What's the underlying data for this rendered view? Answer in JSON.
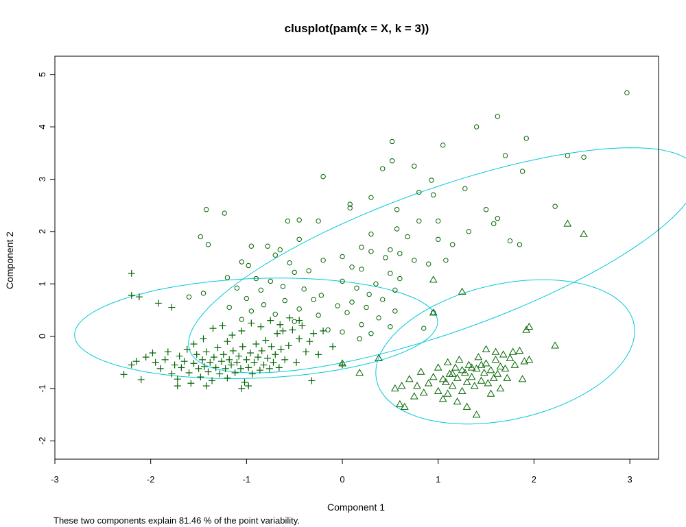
{
  "chart_data": {
    "type": "scatter",
    "title": "clusplot(pam(x = X, k = 3))",
    "xlabel": "Component 1",
    "ylabel": "Component 2",
    "footnote": "These two components explain 81.46 % of the point variability.",
    "xlim": [
      -3,
      3.3
    ],
    "ylim": [
      -2.35,
      5.35
    ],
    "xticks": [
      "-3",
      "-2",
      "-1",
      "0",
      "1",
      "2",
      "3"
    ],
    "yticks": [
      "-2",
      "-1",
      "0",
      "1",
      "2",
      "3",
      "4",
      "5"
    ],
    "grid": false,
    "colors": {
      "points": "#006400",
      "ellipse": "#00c8d8",
      "axes": "#000000"
    },
    "ellipses": [
      {
        "cluster": "circles",
        "center": [
          1.05,
          1.45
        ],
        "radii": [
          3.2,
          1.2
        ],
        "rotation_deg": 37
      },
      {
        "cluster": "plus",
        "center": [
          -0.9,
          0.15
        ],
        "radii": [
          1.9,
          0.95
        ],
        "rotation_deg": 5
      },
      {
        "cluster": "triangles",
        "center": [
          1.7,
          -0.3
        ],
        "radii": [
          1.55,
          1.15
        ],
        "rotation_deg": 47
      }
    ],
    "series": [
      {
        "marker": "plus",
        "points": [
          [
            -2.2,
            1.2
          ],
          [
            -2.2,
            0.78
          ],
          [
            -2.12,
            0.75
          ],
          [
            -1.92,
            0.63
          ],
          [
            -1.78,
            0.55
          ],
          [
            -2.28,
            -0.73
          ],
          [
            -2.1,
            -0.83
          ],
          [
            -2.2,
            -0.55
          ],
          [
            -2.15,
            -0.48
          ],
          [
            -2.05,
            -0.4
          ],
          [
            -1.98,
            -0.32
          ],
          [
            -1.95,
            -0.5
          ],
          [
            -1.9,
            -0.62
          ],
          [
            -1.85,
            -0.45
          ],
          [
            -1.82,
            -0.3
          ],
          [
            -1.78,
            -0.72
          ],
          [
            -1.75,
            -0.55
          ],
          [
            -1.72,
            -0.82
          ],
          [
            -1.7,
            -0.38
          ],
          [
            -1.68,
            -0.6
          ],
          [
            -1.65,
            -0.48
          ],
          [
            -1.62,
            -0.25
          ],
          [
            -1.6,
            -0.7
          ],
          [
            -1.58,
            -0.9
          ],
          [
            -1.55,
            -0.52
          ],
          [
            -1.52,
            -0.35
          ],
          [
            -1.5,
            -0.62
          ],
          [
            -1.48,
            -0.78
          ],
          [
            -1.46,
            -0.45
          ],
          [
            -1.44,
            -0.58
          ],
          [
            -1.42,
            -0.3
          ],
          [
            -1.4,
            -0.68
          ],
          [
            -1.38,
            -0.5
          ],
          [
            -1.36,
            -0.85
          ],
          [
            -1.34,
            -0.4
          ],
          [
            -1.32,
            -0.6
          ],
          [
            -1.3,
            -0.22
          ],
          [
            -1.28,
            -0.72
          ],
          [
            -1.26,
            -0.48
          ],
          [
            -1.24,
            -0.35
          ],
          [
            -1.22,
            -0.62
          ],
          [
            -1.2,
            -0.8
          ],
          [
            -1.18,
            -0.45
          ],
          [
            -1.16,
            -0.55
          ],
          [
            -1.14,
            -0.28
          ],
          [
            -1.12,
            -0.7
          ],
          [
            -1.1,
            -0.5
          ],
          [
            -1.08,
            -0.38
          ],
          [
            -1.06,
            -0.62
          ],
          [
            -1.04,
            -0.2
          ],
          [
            -1.02,
            -0.88
          ],
          [
            -1.0,
            -0.45
          ],
          [
            -0.98,
            -0.6
          ],
          [
            -0.96,
            -0.32
          ],
          [
            -0.94,
            -0.72
          ],
          [
            -0.92,
            -0.5
          ],
          [
            -0.9,
            -0.15
          ],
          [
            -0.88,
            -0.4
          ],
          [
            -0.86,
            -0.65
          ],
          [
            -0.84,
            -0.28
          ],
          [
            -0.82,
            -0.55
          ],
          [
            -0.8,
            -0.08
          ],
          [
            -0.78,
            -0.42
          ],
          [
            -0.76,
            -0.62
          ],
          [
            -0.74,
            -0.2
          ],
          [
            -0.72,
            -0.5
          ],
          [
            -0.7,
            -0.35
          ],
          [
            -0.68,
            0.05
          ],
          [
            -0.66,
            -0.6
          ],
          [
            -0.64,
            -0.25
          ],
          [
            -0.62,
            0.1
          ],
          [
            -0.6,
            -0.45
          ],
          [
            -0.56,
            -0.18
          ],
          [
            -0.52,
            0.12
          ],
          [
            -0.48,
            -0.5
          ],
          [
            -0.45,
            -0.05
          ],
          [
            -0.42,
            0.2
          ],
          [
            -0.38,
            -0.3
          ],
          [
            -0.34,
            -0.1
          ],
          [
            -0.3,
            0.05
          ],
          [
            -0.25,
            -0.35
          ],
          [
            -0.2,
            0.1
          ],
          [
            -0.1,
            -0.2
          ],
          [
            -0.32,
            -0.85
          ],
          [
            0.0,
            -0.55
          ],
          [
            -1.35,
            0.15
          ],
          [
            -1.45,
            -0.05
          ],
          [
            -1.25,
            0.2
          ],
          [
            -1.15,
            0.02
          ],
          [
            -1.05,
            0.1
          ],
          [
            -0.95,
            0.25
          ],
          [
            -0.85,
            0.18
          ],
          [
            -0.75,
            0.3
          ],
          [
            -0.65,
            0.22
          ],
          [
            -0.55,
            0.35
          ],
          [
            -0.45,
            0.3
          ],
          [
            -1.55,
            -0.15
          ],
          [
            -1.2,
            -0.1
          ],
          [
            -0.98,
            -0.95
          ],
          [
            -1.05,
            -1.0
          ],
          [
            -1.42,
            -0.95
          ],
          [
            -1.72,
            -0.95
          ]
        ]
      },
      {
        "marker": "circle",
        "points": [
          [
            2.97,
            4.65
          ],
          [
            1.4,
            4.0
          ],
          [
            1.62,
            4.2
          ],
          [
            1.92,
            3.78
          ],
          [
            0.52,
            3.72
          ],
          [
            1.05,
            3.65
          ],
          [
            1.7,
            3.45
          ],
          [
            2.35,
            3.45
          ],
          [
            2.52,
            3.42
          ],
          [
            0.52,
            3.35
          ],
          [
            0.75,
            3.25
          ],
          [
            0.42,
            3.2
          ],
          [
            1.88,
            3.15
          ],
          [
            -0.2,
            3.05
          ],
          [
            0.93,
            2.98
          ],
          [
            1.28,
            2.82
          ],
          [
            0.95,
            2.7
          ],
          [
            0.8,
            2.75
          ],
          [
            0.3,
            2.65
          ],
          [
            0.08,
            2.52
          ],
          [
            0.08,
            2.45
          ],
          [
            -1.42,
            2.42
          ],
          [
            2.22,
            2.48
          ],
          [
            1.5,
            2.42
          ],
          [
            0.57,
            2.42
          ],
          [
            -1.23,
            2.35
          ],
          [
            1.62,
            2.25
          ],
          [
            -0.45,
            2.22
          ],
          [
            -0.57,
            2.2
          ],
          [
            -0.25,
            2.2
          ],
          [
            0.8,
            2.2
          ],
          [
            1.0,
            2.2
          ],
          [
            1.58,
            2.15
          ],
          [
            0.57,
            2.05
          ],
          [
            1.32,
            2.0
          ],
          [
            0.3,
            1.95
          ],
          [
            0.68,
            1.9
          ],
          [
            1.0,
            1.85
          ],
          [
            -0.45,
            1.85
          ],
          [
            -1.48,
            1.9
          ],
          [
            -1.4,
            1.75
          ],
          [
            1.75,
            1.82
          ],
          [
            1.85,
            1.75
          ],
          [
            1.15,
            1.75
          ],
          [
            0.2,
            1.7
          ],
          [
            0.5,
            1.65
          ],
          [
            -0.95,
            1.72
          ],
          [
            -0.78,
            1.72
          ],
          [
            -0.65,
            1.65
          ],
          [
            0.3,
            1.62
          ],
          [
            0.6,
            1.58
          ],
          [
            -0.7,
            1.55
          ],
          [
            0.0,
            1.52
          ],
          [
            0.45,
            1.5
          ],
          [
            0.75,
            1.45
          ],
          [
            1.08,
            1.45
          ],
          [
            -0.2,
            1.45
          ],
          [
            -1.05,
            1.42
          ],
          [
            -0.55,
            1.4
          ],
          [
            0.9,
            1.38
          ],
          [
            -0.98,
            1.35
          ],
          [
            0.1,
            1.32
          ],
          [
            0.2,
            1.28
          ],
          [
            -0.35,
            1.25
          ],
          [
            0.5,
            1.2
          ],
          [
            -0.5,
            1.22
          ],
          [
            0.6,
            1.1
          ],
          [
            -1.2,
            1.12
          ],
          [
            -0.9,
            1.1
          ],
          [
            0.0,
            1.05
          ],
          [
            -0.75,
            1.05
          ],
          [
            0.35,
            1.0
          ],
          [
            -0.62,
            0.95
          ],
          [
            0.15,
            0.92
          ],
          [
            -1.1,
            0.92
          ],
          [
            -0.4,
            0.9
          ],
          [
            0.55,
            0.88
          ],
          [
            -0.85,
            0.88
          ],
          [
            0.28,
            0.8
          ],
          [
            -0.22,
            0.78
          ],
          [
            -1.45,
            0.82
          ],
          [
            -1.6,
            0.75
          ],
          [
            -1.0,
            0.72
          ],
          [
            -0.3,
            0.7
          ],
          [
            0.42,
            0.7
          ],
          [
            -0.6,
            0.68
          ],
          [
            0.1,
            0.65
          ],
          [
            -0.82,
            0.6
          ],
          [
            -0.05,
            0.58
          ],
          [
            0.25,
            0.55
          ],
          [
            -1.18,
            0.55
          ],
          [
            -0.45,
            0.52
          ],
          [
            0.55,
            0.48
          ],
          [
            -0.95,
            0.48
          ],
          [
            0.05,
            0.45
          ],
          [
            -0.7,
            0.42
          ],
          [
            -0.25,
            0.4
          ],
          [
            0.38,
            0.35
          ],
          [
            -1.05,
            0.32
          ],
          [
            -0.5,
            0.28
          ],
          [
            0.2,
            0.22
          ],
          [
            0.5,
            0.18
          ],
          [
            -0.15,
            0.12
          ],
          [
            0.3,
            0.05
          ],
          [
            0.0,
            0.08
          ],
          [
            0.18,
            -0.05
          ],
          [
            0.95,
            0.45
          ],
          [
            0.85,
            0.15
          ]
        ]
      },
      {
        "marker": "triangle",
        "points": [
          [
            2.35,
            2.15
          ],
          [
            2.52,
            1.95
          ],
          [
            0.95,
            1.08
          ],
          [
            1.25,
            0.85
          ],
          [
            0.95,
            0.45
          ],
          [
            2.22,
            -0.18
          ],
          [
            1.95,
            0.18
          ],
          [
            1.92,
            0.12
          ],
          [
            0.38,
            -0.42
          ],
          [
            0.0,
            -0.52
          ],
          [
            0.18,
            -0.7
          ],
          [
            0.55,
            -1.0
          ],
          [
            0.6,
            -1.3
          ],
          [
            0.65,
            -1.35
          ],
          [
            0.75,
            -1.15
          ],
          [
            0.85,
            -1.08
          ],
          [
            0.9,
            -0.9
          ],
          [
            0.95,
            -0.78
          ],
          [
            1.0,
            -0.6
          ],
          [
            1.05,
            -1.2
          ],
          [
            1.08,
            -0.88
          ],
          [
            1.1,
            -0.5
          ],
          [
            1.12,
            -0.72
          ],
          [
            1.15,
            -0.95
          ],
          [
            1.18,
            -0.6
          ],
          [
            1.2,
            -0.8
          ],
          [
            1.22,
            -0.45
          ],
          [
            1.25,
            -1.05
          ],
          [
            1.28,
            -0.7
          ],
          [
            1.3,
            -0.88
          ],
          [
            1.32,
            -0.55
          ],
          [
            1.35,
            -0.78
          ],
          [
            1.38,
            -0.95
          ],
          [
            1.4,
            -0.62
          ],
          [
            1.42,
            -0.4
          ],
          [
            1.45,
            -0.85
          ],
          [
            1.48,
            -0.7
          ],
          [
            1.5,
            -0.52
          ],
          [
            1.52,
            -0.9
          ],
          [
            1.55,
            -0.65
          ],
          [
            1.58,
            -0.8
          ],
          [
            1.6,
            -0.45
          ],
          [
            1.62,
            -0.72
          ],
          [
            1.65,
            -0.58
          ],
          [
            1.68,
            -0.35
          ],
          [
            1.7,
            -0.62
          ],
          [
            1.72,
            -0.8
          ],
          [
            1.75,
            -0.42
          ],
          [
            1.8,
            -0.55
          ],
          [
            1.85,
            -0.28
          ],
          [
            1.9,
            -0.48
          ],
          [
            1.88,
            -0.82
          ],
          [
            1.05,
            -0.82
          ],
          [
            1.15,
            -0.72
          ],
          [
            1.25,
            -0.65
          ],
          [
            1.35,
            -0.6
          ],
          [
            1.45,
            -0.55
          ],
          [
            1.3,
            -1.35
          ],
          [
            1.4,
            -1.5
          ],
          [
            1.2,
            -1.25
          ],
          [
            0.78,
            -0.95
          ],
          [
            0.82,
            -0.68
          ],
          [
            1.0,
            -1.05
          ],
          [
            1.1,
            -1.1
          ],
          [
            1.65,
            -1.0
          ],
          [
            1.55,
            -1.1
          ],
          [
            0.7,
            -0.82
          ],
          [
            0.62,
            -0.95
          ],
          [
            1.95,
            -0.45
          ],
          [
            1.78,
            -0.3
          ],
          [
            1.6,
            -0.3
          ],
          [
            1.5,
            -0.25
          ]
        ]
      }
    ]
  }
}
